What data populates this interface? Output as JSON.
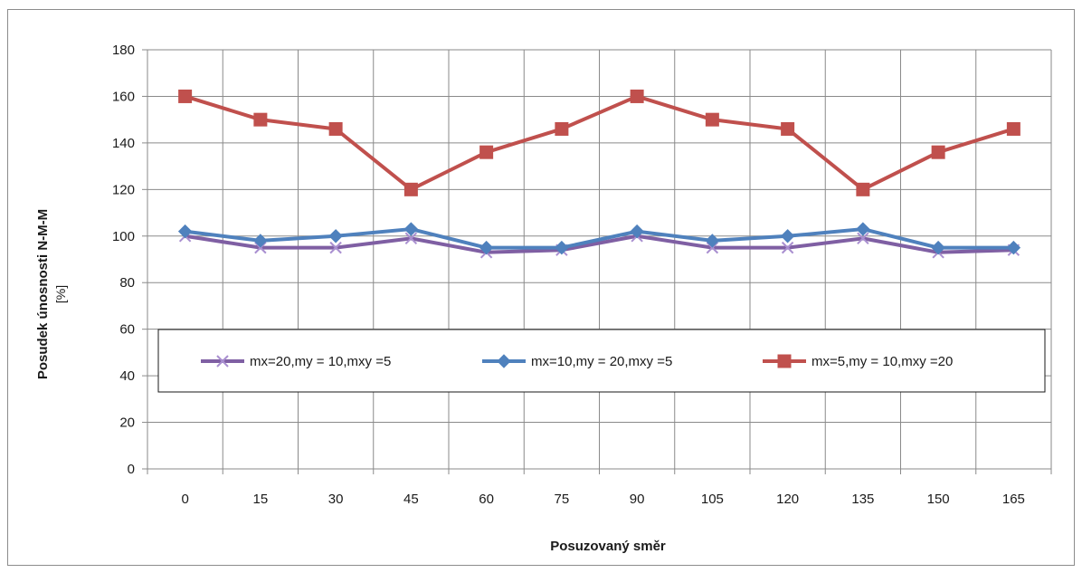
{
  "chart_data": {
    "type": "line",
    "title": "",
    "xlabel": "Posuzovaný směr",
    "ylabel": "Posudek únosnosti N-M-M",
    "ylabel_unit": "[%]",
    "categories": [
      "0",
      "15",
      "30",
      "45",
      "60",
      "75",
      "90",
      "105",
      "120",
      "135",
      "150",
      "165"
    ],
    "ylim": [
      0,
      180
    ],
    "yticks": [
      0,
      20,
      40,
      60,
      80,
      100,
      120,
      140,
      160,
      180
    ],
    "grid": true,
    "legend_position": "inside-bottom",
    "series": [
      {
        "name": "mx=20,my = 10,mxy =5",
        "color": "#7f5fa3",
        "marker": "x",
        "values": [
          100,
          95,
          95,
          99,
          93,
          94,
          100,
          95,
          95,
          99,
          93,
          94
        ]
      },
      {
        "name": "mx=10,my = 20,mxy =5",
        "color": "#4f81bd",
        "marker": "diamond",
        "values": [
          102,
          98,
          100,
          103,
          95,
          95,
          102,
          98,
          100,
          103,
          95,
          95
        ]
      },
      {
        "name": "mx=5,my = 10,mxy =20",
        "color": "#c0504d",
        "marker": "square",
        "values": [
          160,
          150,
          146,
          120,
          136,
          146,
          160,
          150,
          146,
          120,
          136,
          146
        ]
      }
    ]
  }
}
